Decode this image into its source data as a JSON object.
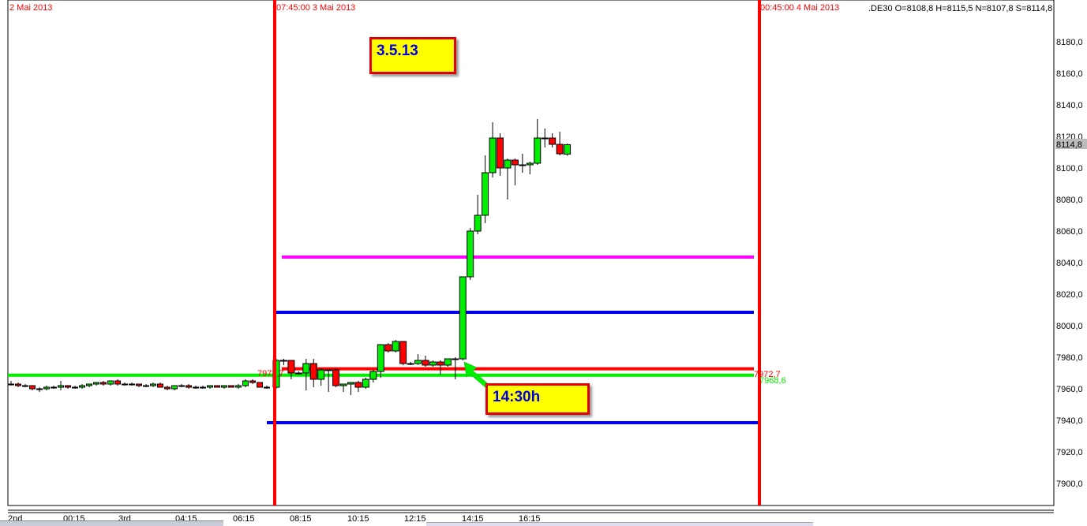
{
  "chart_data": {
    "type": "candlestick",
    "instrument_info": ".DE30 O=8108,8 H=8115,5 N=8107,8 S=8114,8",
    "last_price_label": "8114,8",
    "ylim": [
      7885,
      8206
    ],
    "y_ticks": [
      "8180,0",
      "8160,0",
      "8140,0",
      "8120,0",
      "8100,0",
      "8080,0",
      "8060,0",
      "8040,0",
      "8020,0",
      "8000,0",
      "7980,0",
      "7960,0",
      "7940,0",
      "7920,0",
      "7900,0"
    ],
    "y_tick_values": [
      8180,
      8160,
      8140,
      8120,
      8100,
      8080,
      8060,
      8040,
      8020,
      8000,
      7980,
      7960,
      7940,
      7920,
      7900
    ],
    "x_ticks": [
      "2nd",
      "00:15",
      "3rd",
      "04:15",
      "06:15",
      "08:15",
      "10:15",
      "12:15",
      "14:15",
      "16:15"
    ],
    "date_labels": {
      "left": "2 Mai 2013",
      "session_start": "07:45:00 3 Mai 2013",
      "session_end": "00:45:00 4 Mai 2013"
    },
    "colors": {
      "up": "#00ee00",
      "down": "#ff0000",
      "session_line": "#ff0000",
      "magenta": "#ff00ff",
      "blue": "#0000ee",
      "green_level": "#00ee00",
      "red_level": "#ff0000"
    },
    "levels": [
      {
        "value": 8043.5,
        "color": "#ff00ff",
        "label": ""
      },
      {
        "value": 8008.5,
        "color": "#0000ee",
        "label": ""
      },
      {
        "value": 7972.7,
        "color": "#ff0000",
        "label": "7972,7"
      },
      {
        "value": 7968.6,
        "color": "#00ee00",
        "label": "7968,6"
      },
      {
        "value": 7938.5,
        "color": "#0000ee",
        "label": ""
      }
    ],
    "pre_session_candles": [
      [
        7963,
        7965,
        7962,
        7963
      ],
      [
        7963,
        7964,
        7961,
        7962
      ],
      [
        7962,
        7963,
        7961,
        7962
      ],
      [
        7962,
        7962,
        7959,
        7960
      ],
      [
        7960,
        7961,
        7958,
        7960
      ],
      [
        7960,
        7962,
        7959,
        7961
      ],
      [
        7961,
        7962,
        7960,
        7961
      ],
      [
        7961,
        7965,
        7959,
        7962
      ],
      [
        7962,
        7962,
        7960,
        7961
      ],
      [
        7961,
        7962,
        7960,
        7961
      ],
      [
        7961,
        7963,
        7960,
        7962
      ],
      [
        7962,
        7963,
        7961,
        7963
      ],
      [
        7963,
        7964,
        7962,
        7964
      ],
      [
        7964,
        7965,
        7962,
        7963
      ],
      [
        7963,
        7965,
        7962,
        7965
      ],
      [
        7965,
        7966,
        7962,
        7963
      ],
      [
        7963,
        7964,
        7962,
        7963
      ],
      [
        7963,
        7964,
        7962,
        7963
      ],
      [
        7963,
        7963,
        7961,
        7962
      ],
      [
        7962,
        7963,
        7961,
        7962
      ],
      [
        7962,
        7964,
        7961,
        7963
      ],
      [
        7963,
        7964,
        7961,
        7961
      ],
      [
        7961,
        7962,
        7959,
        7960
      ],
      [
        7960,
        7962,
        7959,
        7962
      ],
      [
        7962,
        7963,
        7961,
        7962
      ],
      [
        7962,
        7963,
        7960,
        7961
      ],
      [
        7961,
        7962,
        7960,
        7961
      ],
      [
        7961,
        7962,
        7960,
        7961
      ],
      [
        7961,
        7962,
        7960,
        7962
      ],
      [
        7962,
        7962,
        7961,
        7961
      ],
      [
        7961,
        7962,
        7960,
        7962
      ],
      [
        7962,
        7962,
        7961,
        7961
      ],
      [
        7961,
        7963,
        7960,
        7962
      ],
      [
        7962,
        7966,
        7961,
        7965
      ],
      [
        7965,
        7966,
        7963,
        7964
      ],
      [
        7964,
        7964,
        7961,
        7961
      ],
      [
        7961,
        7962,
        7960,
        7961
      ]
    ],
    "session_candles": [
      [
        7961,
        7979,
        7960,
        7978
      ],
      [
        7978,
        7979,
        7975,
        7978
      ],
      [
        7978,
        7978,
        7966,
        7970
      ],
      [
        7970,
        7971,
        7969,
        7970
      ],
      [
        7970,
        7979,
        7959,
        7976
      ],
      [
        7976,
        7979,
        7961,
        7966
      ],
      [
        7966,
        7973,
        7962,
        7972
      ],
      [
        7972,
        7972,
        7958,
        7972
      ],
      [
        7972,
        7973,
        7961,
        7962
      ],
      [
        7962,
        7963,
        7958,
        7963
      ],
      [
        7963,
        7964,
        7956,
        7964
      ],
      [
        7964,
        7965,
        7958,
        7961
      ],
      [
        7961,
        7967,
        7960,
        7966
      ],
      [
        7966,
        7972,
        7964,
        7971
      ],
      [
        7971,
        7988,
        7967,
        7988
      ],
      [
        7988,
        7989,
        7983,
        7984
      ],
      [
        7984,
        7991,
        7983,
        7990
      ],
      [
        7990,
        7990,
        7975,
        7976
      ],
      [
        7976,
        7977,
        7975,
        7976
      ],
      [
        7976,
        7982,
        7975,
        7978
      ],
      [
        7978,
        7981,
        7974,
        7975
      ],
      [
        7975,
        7978,
        7974,
        7977
      ],
      [
        7977,
        7978,
        7969,
        7975
      ],
      [
        7975,
        7979,
        7974,
        7979
      ],
      [
        7979,
        7980,
        7966,
        7979
      ],
      [
        7979,
        8031,
        7978,
        8031
      ],
      [
        8031,
        8062,
        8029,
        8060
      ],
      [
        8060,
        8083,
        8058,
        8070
      ],
      [
        8070,
        8108,
        8065,
        8097
      ],
      [
        8097,
        8129,
        8094,
        8119
      ],
      [
        8119,
        8122,
        8095,
        8100
      ],
      [
        8100,
        8106,
        8080,
        8105
      ],
      [
        8105,
        8106,
        8089,
        8102
      ],
      [
        8102,
        8109,
        8097,
        8102
      ],
      [
        8102,
        8104,
        8096,
        8103
      ],
      [
        8103,
        8131,
        8102,
        8119
      ],
      [
        8119,
        8125,
        8113,
        8119
      ],
      [
        8119,
        8122,
        8113,
        8115
      ],
      [
        8115,
        8123,
        8108,
        8109
      ],
      [
        8108.8,
        8115.5,
        8107.8,
        8114.8
      ]
    ]
  },
  "annotations": {
    "date_box": "3.5.13",
    "time_box": "14:30h"
  }
}
